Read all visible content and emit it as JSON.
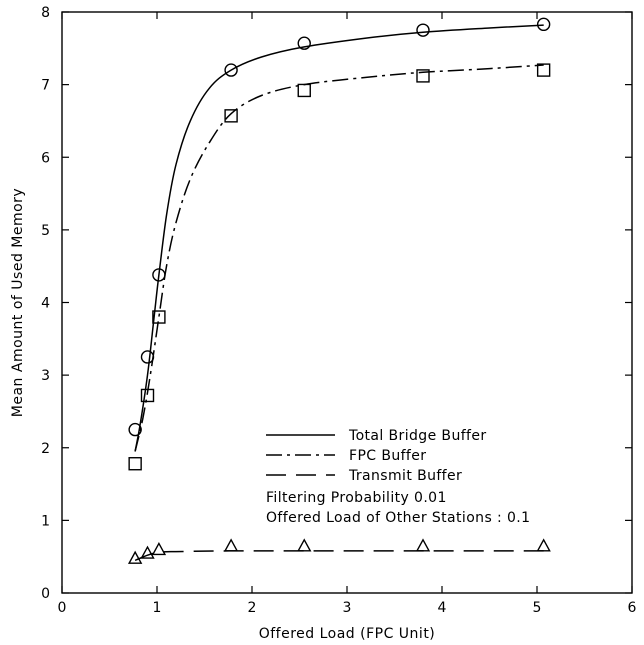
{
  "chart_data": {
    "type": "line",
    "xlabel": "Offered Load (FPC Unit)",
    "ylabel": "Mean Amount of Used Memory",
    "xlim": [
      0,
      6
    ],
    "ylim": [
      0,
      8
    ],
    "x_ticks": [
      0,
      1,
      2,
      3,
      4,
      5,
      6
    ],
    "y_ticks": [
      0,
      1,
      2,
      3,
      4,
      5,
      6,
      7,
      8
    ],
    "grid": false,
    "legend_position": "bottom-right",
    "series": [
      {
        "name": "Total Bridge Buffer",
        "line_style": "solid",
        "marker": "circle",
        "points": [
          [
            0.77,
            2.25
          ],
          [
            0.9,
            3.25
          ],
          [
            1.02,
            4.38
          ],
          [
            1.78,
            7.2
          ],
          [
            2.55,
            7.57
          ],
          [
            3.8,
            7.75
          ],
          [
            5.07,
            7.83
          ]
        ],
        "curve": [
          [
            0.77,
            1.95
          ],
          [
            0.82,
            2.3
          ],
          [
            0.9,
            3.0
          ],
          [
            0.97,
            3.8
          ],
          [
            1.02,
            4.38
          ],
          [
            1.1,
            5.2
          ],
          [
            1.2,
            5.9
          ],
          [
            1.35,
            6.5
          ],
          [
            1.55,
            6.95
          ],
          [
            1.78,
            7.2
          ],
          [
            2.1,
            7.38
          ],
          [
            2.55,
            7.52
          ],
          [
            3.2,
            7.64
          ],
          [
            3.8,
            7.72
          ],
          [
            4.5,
            7.78
          ],
          [
            5.07,
            7.82
          ]
        ]
      },
      {
        "name": "FPC Buffer",
        "line_style": "dash-dot",
        "marker": "square",
        "points": [
          [
            0.77,
            1.78
          ],
          [
            0.9,
            2.72
          ],
          [
            1.02,
            3.8
          ],
          [
            1.78,
            6.57
          ],
          [
            2.55,
            6.92
          ],
          [
            3.8,
            7.12
          ],
          [
            5.07,
            7.2
          ]
        ],
        "curve": [
          [
            0.77,
            1.95
          ],
          [
            0.85,
            2.4
          ],
          [
            0.93,
            3.0
          ],
          [
            1.02,
            3.8
          ],
          [
            1.1,
            4.5
          ],
          [
            1.2,
            5.1
          ],
          [
            1.35,
            5.7
          ],
          [
            1.55,
            6.2
          ],
          [
            1.78,
            6.6
          ],
          [
            2.1,
            6.85
          ],
          [
            2.55,
            7.0
          ],
          [
            3.2,
            7.1
          ],
          [
            3.8,
            7.17
          ],
          [
            4.5,
            7.22
          ],
          [
            5.07,
            7.27
          ]
        ]
      },
      {
        "name": "Transmit Buffer",
        "line_style": "dashed",
        "marker": "triangle",
        "points": [
          [
            0.77,
            0.48
          ],
          [
            0.9,
            0.55
          ],
          [
            1.02,
            0.6
          ],
          [
            1.78,
            0.65
          ],
          [
            2.55,
            0.65
          ],
          [
            3.8,
            0.65
          ],
          [
            5.07,
            0.65
          ]
        ],
        "curve": [
          [
            0.77,
            0.45
          ],
          [
            0.9,
            0.52
          ],
          [
            1.02,
            0.56
          ],
          [
            1.2,
            0.57
          ],
          [
            1.78,
            0.58
          ],
          [
            2.55,
            0.58
          ],
          [
            3.8,
            0.58
          ],
          [
            5.07,
            0.58
          ]
        ]
      }
    ],
    "annotations": [
      "Filtering Probability 0.01",
      "Offered Load of Other Stations : 0.1"
    ]
  }
}
